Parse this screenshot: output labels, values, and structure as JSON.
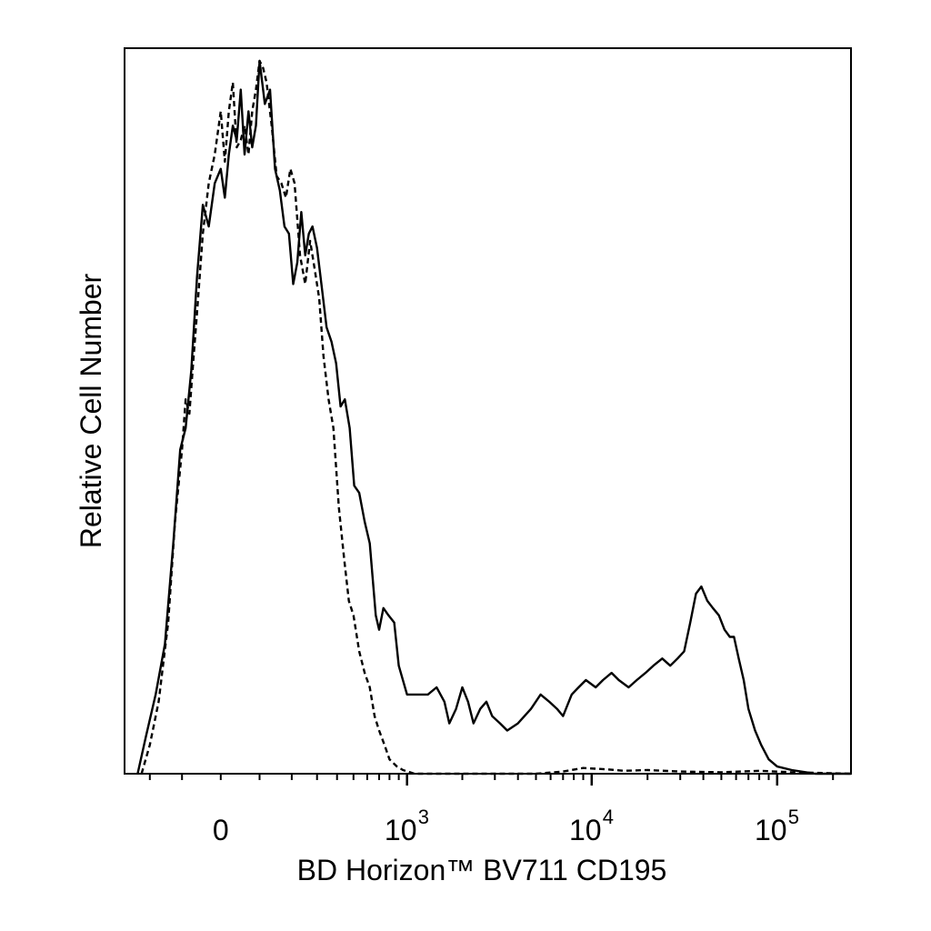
{
  "chart_data": {
    "type": "line",
    "title": "",
    "xlabel": "BD Horizon™ BV711 CD195",
    "ylabel": "Relative Cell Number",
    "x_scale": "biexponential",
    "xlim": [
      -300,
      250000
    ],
    "ylim": [
      0,
      1
    ],
    "grid": false,
    "legend": "none",
    "x_ticks": [
      {
        "value": 0,
        "base": "0",
        "exp": ""
      },
      {
        "value": 1000,
        "base": "10",
        "exp": "3"
      },
      {
        "value": 10000,
        "base": "10",
        "exp": "4"
      },
      {
        "value": 100000,
        "base": "10",
        "exp": "5"
      }
    ],
    "series": [
      {
        "style": "solid",
        "color": "#000000",
        "points": [
          [
            -245,
            0.0
          ],
          [
            -215,
            0.05
          ],
          [
            -180,
            0.11
          ],
          [
            -150,
            0.18
          ],
          [
            -125,
            0.32
          ],
          [
            -105,
            0.45
          ],
          [
            -90,
            0.48
          ],
          [
            -75,
            0.56
          ],
          [
            -60,
            0.69
          ],
          [
            -45,
            0.79
          ],
          [
            -30,
            0.76
          ],
          [
            -15,
            0.82
          ],
          [
            0,
            0.84
          ],
          [
            10,
            0.8
          ],
          [
            20,
            0.86
          ],
          [
            30,
            0.9
          ],
          [
            40,
            0.88
          ],
          [
            50,
            0.95
          ],
          [
            60,
            0.86
          ],
          [
            70,
            0.92
          ],
          [
            80,
            0.87
          ],
          [
            90,
            0.9
          ],
          [
            100,
            0.99
          ],
          [
            115,
            0.93
          ],
          [
            130,
            0.95
          ],
          [
            145,
            0.84
          ],
          [
            160,
            0.81
          ],
          [
            175,
            0.76
          ],
          [
            190,
            0.75
          ],
          [
            205,
            0.68
          ],
          [
            220,
            0.71
          ],
          [
            235,
            0.78
          ],
          [
            250,
            0.72
          ],
          [
            265,
            0.75
          ],
          [
            280,
            0.76
          ],
          [
            300,
            0.73
          ],
          [
            320,
            0.68
          ],
          [
            345,
            0.62
          ],
          [
            370,
            0.6
          ],
          [
            395,
            0.57
          ],
          [
            420,
            0.51
          ],
          [
            445,
            0.52
          ],
          [
            475,
            0.48
          ],
          [
            505,
            0.4
          ],
          [
            540,
            0.39
          ],
          [
            580,
            0.35
          ],
          [
            620,
            0.32
          ],
          [
            670,
            0.22
          ],
          [
            700,
            0.2
          ],
          [
            740,
            0.23
          ],
          [
            790,
            0.22
          ],
          [
            850,
            0.21
          ],
          [
            900,
            0.15
          ],
          [
            1000,
            0.11
          ],
          [
            1150,
            0.11
          ],
          [
            1300,
            0.11
          ],
          [
            1450,
            0.12
          ],
          [
            1600,
            0.1
          ],
          [
            1700,
            0.07
          ],
          [
            1850,
            0.09
          ],
          [
            2000,
            0.12
          ],
          [
            2150,
            0.1
          ],
          [
            2300,
            0.07
          ],
          [
            2500,
            0.09
          ],
          [
            2700,
            0.1
          ],
          [
            2900,
            0.08
          ],
          [
            3200,
            0.07
          ],
          [
            3500,
            0.06
          ],
          [
            4000,
            0.07
          ],
          [
            4700,
            0.09
          ],
          [
            5300,
            0.11
          ],
          [
            5900,
            0.1
          ],
          [
            6500,
            0.09
          ],
          [
            7000,
            0.08
          ],
          [
            7800,
            0.11
          ],
          [
            8500,
            0.12
          ],
          [
            9300,
            0.13
          ],
          [
            10500,
            0.12
          ],
          [
            11500,
            0.13
          ],
          [
            12800,
            0.14
          ],
          [
            14000,
            0.13
          ],
          [
            15800,
            0.12
          ],
          [
            17500,
            0.13
          ],
          [
            19500,
            0.14
          ],
          [
            21500,
            0.15
          ],
          [
            24000,
            0.16
          ],
          [
            26500,
            0.15
          ],
          [
            29000,
            0.16
          ],
          [
            31500,
            0.17
          ],
          [
            34000,
            0.21
          ],
          [
            36500,
            0.25
          ],
          [
            39000,
            0.26
          ],
          [
            42000,
            0.24
          ],
          [
            45000,
            0.23
          ],
          [
            48500,
            0.22
          ],
          [
            52000,
            0.2
          ],
          [
            55500,
            0.19
          ],
          [
            58500,
            0.19
          ],
          [
            62000,
            0.16
          ],
          [
            66000,
            0.13
          ],
          [
            70000,
            0.09
          ],
          [
            76000,
            0.06
          ],
          [
            82000,
            0.04
          ],
          [
            90000,
            0.02
          ],
          [
            100000,
            0.01
          ],
          [
            120000,
            0.005
          ],
          [
            160000,
            0.0
          ],
          [
            250000,
            0.0
          ]
        ]
      },
      {
        "style": "dashed",
        "color": "#000000",
        "points": [
          [
            -230,
            0.0
          ],
          [
            -200,
            0.04
          ],
          [
            -170,
            0.1
          ],
          [
            -140,
            0.21
          ],
          [
            -120,
            0.35
          ],
          [
            -100,
            0.45
          ],
          [
            -90,
            0.52
          ],
          [
            -80,
            0.5
          ],
          [
            -70,
            0.57
          ],
          [
            -60,
            0.64
          ],
          [
            -45,
            0.75
          ],
          [
            -30,
            0.82
          ],
          [
            -15,
            0.86
          ],
          [
            0,
            0.92
          ],
          [
            10,
            0.85
          ],
          [
            20,
            0.92
          ],
          [
            30,
            0.96
          ],
          [
            40,
            0.87
          ],
          [
            50,
            0.88
          ],
          [
            60,
            0.9
          ],
          [
            70,
            0.86
          ],
          [
            80,
            0.92
          ],
          [
            90,
            0.95
          ],
          [
            100,
            0.99
          ],
          [
            110,
            0.98
          ],
          [
            120,
            0.96
          ],
          [
            135,
            0.9
          ],
          [
            150,
            0.83
          ],
          [
            165,
            0.82
          ],
          [
            180,
            0.8
          ],
          [
            195,
            0.84
          ],
          [
            210,
            0.82
          ],
          [
            230,
            0.72
          ],
          [
            250,
            0.68
          ],
          [
            270,
            0.74
          ],
          [
            290,
            0.7
          ],
          [
            310,
            0.66
          ],
          [
            330,
            0.58
          ],
          [
            355,
            0.52
          ],
          [
            380,
            0.48
          ],
          [
            410,
            0.37
          ],
          [
            440,
            0.3
          ],
          [
            470,
            0.24
          ],
          [
            500,
            0.22
          ],
          [
            540,
            0.17
          ],
          [
            580,
            0.14
          ],
          [
            620,
            0.12
          ],
          [
            660,
            0.08
          ],
          [
            700,
            0.06
          ],
          [
            750,
            0.04
          ],
          [
            800,
            0.02
          ],
          [
            880,
            0.01
          ],
          [
            950,
            0.005
          ],
          [
            1100,
            0.0
          ],
          [
            2500,
            0.0
          ],
          [
            5000,
            0.0
          ],
          [
            7000,
            0.003
          ],
          [
            9000,
            0.008
          ],
          [
            12000,
            0.006
          ],
          [
            15000,
            0.004
          ],
          [
            20000,
            0.005
          ],
          [
            30000,
            0.003
          ],
          [
            50000,
            0.002
          ],
          [
            80000,
            0.004
          ],
          [
            120000,
            0.002
          ],
          [
            250000,
            0.0
          ]
        ]
      }
    ]
  }
}
